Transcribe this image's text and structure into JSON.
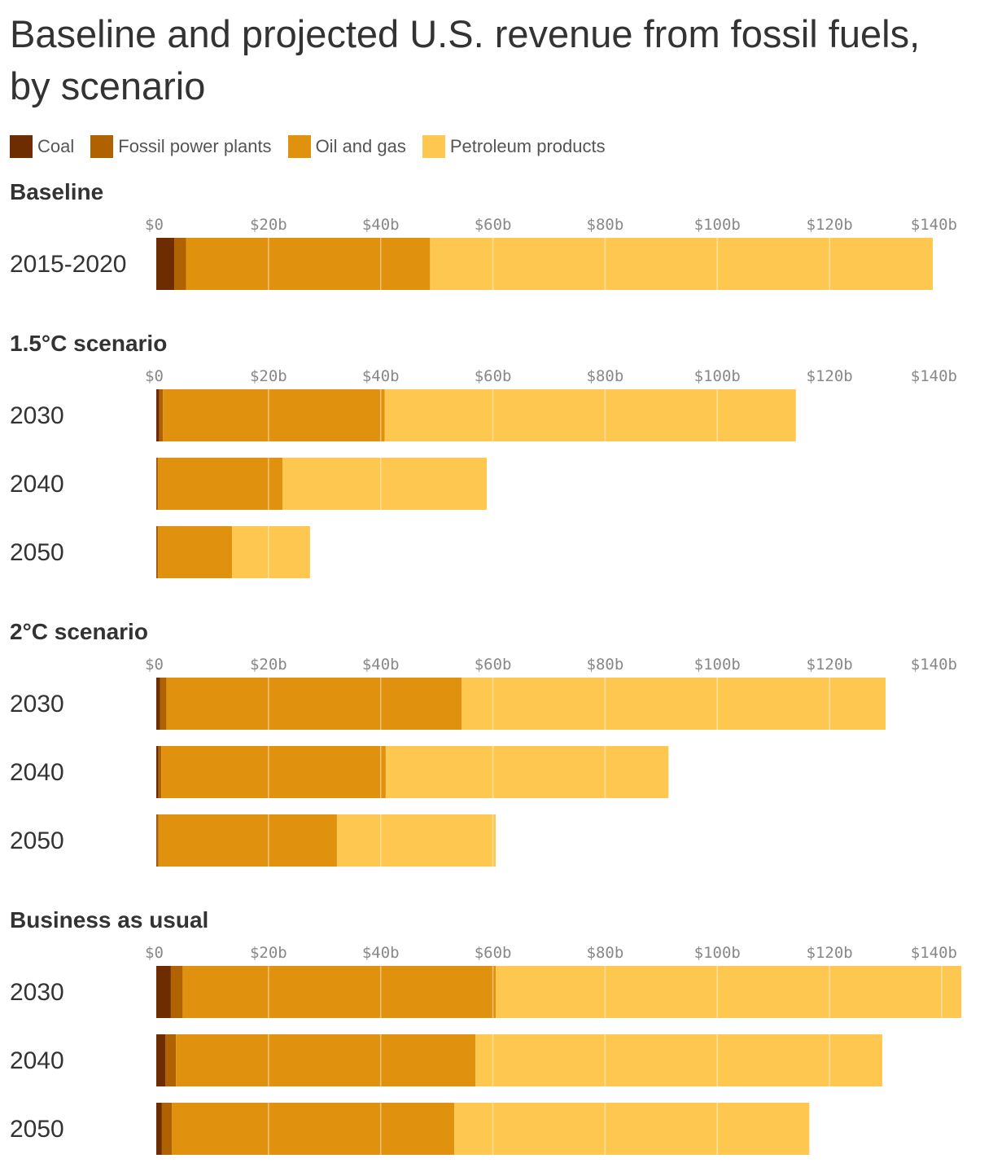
{
  "chart_data": {
    "type": "bar",
    "orientation": "horizontal",
    "stacked": true,
    "title": "Baseline and projected U.S. revenue from fossil fuels, by scenario",
    "series_names": [
      "Coal",
      "Fossil power plants",
      "Oil and gas",
      "Petroleum products"
    ],
    "colors": [
      "#6e2d00",
      "#b06100",
      "#e0920f",
      "#fec850"
    ],
    "xlim": [
      0,
      140
    ],
    "ticks": [
      "$0",
      "$20b",
      "$40b",
      "$60b",
      "$80b",
      "$100b",
      "$120b",
      "$140b"
    ],
    "tick_values": [
      0,
      20,
      40,
      60,
      80,
      100,
      120,
      140
    ],
    "grid": true,
    "legend_position": "top-left",
    "panels": [
      {
        "title": "Baseline",
        "rows": [
          {
            "label": "2015-2020",
            "values": [
              3.2,
              2.1,
              43.5,
              89.6
            ]
          }
        ]
      },
      {
        "title": "1.5°C scenario",
        "rows": [
          {
            "label": "2030",
            "values": [
              0.5,
              0.7,
              39.5,
              73.3
            ]
          },
          {
            "label": "2040",
            "values": [
              0.1,
              0.2,
              22.2,
              36.4
            ]
          },
          {
            "label": "2050",
            "values": [
              0.1,
              0.2,
              13.2,
              13.9
            ]
          }
        ]
      },
      {
        "title": "2°C scenario",
        "rows": [
          {
            "label": "2030",
            "values": [
              0.7,
              1.1,
              52.6,
              75.6
            ]
          },
          {
            "label": "2040",
            "values": [
              0.4,
              0.5,
              40.0,
              50.4
            ]
          },
          {
            "label": "2050",
            "values": [
              0.1,
              0.3,
              31.8,
              28.3
            ]
          }
        ]
      },
      {
        "title": "Business as usual",
        "rows": [
          {
            "label": "2030",
            "values": [
              2.6,
              2.1,
              55.8,
              83.0
            ]
          },
          {
            "label": "2040",
            "values": [
              1.6,
              1.9,
              53.4,
              72.5
            ]
          },
          {
            "label": "2050",
            "values": [
              1.0,
              1.8,
              50.3,
              63.3
            ]
          }
        ]
      }
    ]
  }
}
